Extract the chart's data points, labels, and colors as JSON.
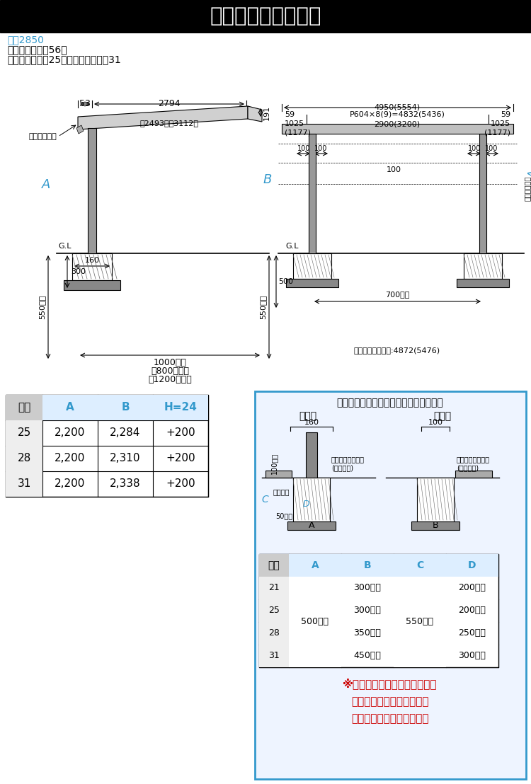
{
  "title": "寸法図（単位ｍｍ）",
  "title_bg": "#000000",
  "title_color": "#ffffff",
  "subtitle_line1": "図は2850",
  "subtitle_line2": "（　）内は奥行56、",
  "subtitle_line3": "【　】内は間口25、「　」内は間口31",
  "subtitle_color": "#0066cc",
  "bg_color": "#ffffff",
  "left_table_header": [
    "間口",
    "A",
    "B",
    "H=24"
  ],
  "left_table_data": [
    [
      "25",
      "2,200",
      "2,284",
      "+200"
    ],
    [
      "28",
      "2,200",
      "2,310",
      "+200"
    ],
    [
      "31",
      "2,200",
      "2,338",
      "+200"
    ]
  ],
  "right_box_title": "土間コンクリート施工の場合の基砀寸法",
  "right_box_subtitle_left": "間口側",
  "right_box_subtitle_right": "奥行側",
  "right_table_header": [
    "間口",
    "A",
    "B",
    "C",
    "D"
  ],
  "right_table_data": [
    [
      "21",
      "",
      "300以上",
      "",
      "200以上"
    ],
    [
      "25",
      "500以上",
      "300以上",
      "550以上",
      "200以上"
    ],
    [
      "28",
      "500以上",
      "350以上",
      "550以上",
      "250以上"
    ],
    [
      "31",
      "500以上",
      "450以上",
      "550以上",
      "300以上"
    ]
  ],
  "note_text": "※サイドパネルを取り付ける場\n合、柱部の基砀は独立基砀\n寸法で施工してください。",
  "note_color": "#cc0000",
  "blue_color": "#3399cc",
  "box_border_color": "#3399cc",
  "label_side_panel": "サイドパネル",
  "label_GL": "G.L",
  "label_160": "160",
  "label_300": "300",
  "label_500": "500",
  "label_550jo": "550以上",
  "label_1000jo": "1000以上",
  "label_800jo": "【800以上】",
  "label_1200jo": "「1200以上」",
  "label_53": "53",
  "label_2794": "2794",
  "label_2493_3112": "【2493】「3112」",
  "label_191": "191",
  "label_4950": "4950(5554)",
  "label_P604": "P604×8(9)=4832(5436)",
  "label_59": "59",
  "label_1025": "1025",
  "label_1177": "(1177)",
  "label_2900": "2900(3200)",
  "label_100": "100",
  "label_700jo": "700以上",
  "label_sidepanel_depth": "サイドパネル奥行:4872(5476)",
  "label_550jo_left": "550以上",
  "label_enden": "縁端距離",
  "label_doukan": "土間コンクリート\n(鉄筋入り)",
  "label_50jo": "50以上",
  "label_100jo": "100以上"
}
